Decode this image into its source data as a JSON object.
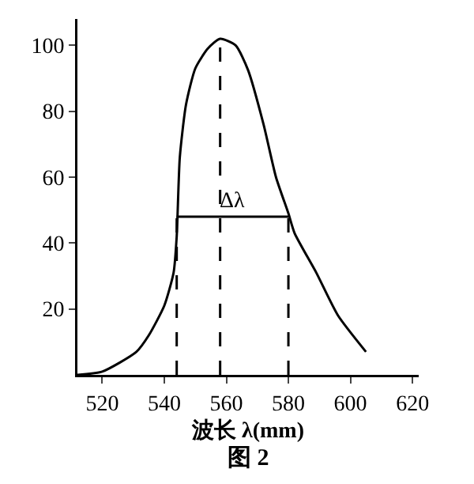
{
  "chart_data": {
    "type": "line",
    "title": "图 2",
    "xlabel": "波长 λ(mm)",
    "xlim": [
      512,
      622
    ],
    "xticks": [
      520,
      540,
      560,
      580,
      600,
      620
    ],
    "ylim": [
      0,
      108
    ],
    "yticks": [
      20,
      40,
      60,
      80,
      100
    ],
    "marker": "none",
    "annotations": [
      {
        "text": "Δλ",
        "x": 562,
        "y": 48
      }
    ],
    "series": [
      {
        "color": "#000000",
        "line_style": "solid",
        "x": [
          512,
          520,
          531,
          535,
          540,
          543,
          544,
          545,
          547,
          550,
          554,
          558,
          563,
          567,
          572,
          576,
          580,
          582,
          589,
          596,
          605
        ],
        "values": [
          0,
          1,
          7,
          12,
          21,
          31,
          42,
          66,
          82,
          93,
          99,
          102,
          100,
          92.5,
          76,
          60,
          49,
          43,
          31,
          18,
          7
        ]
      },
      {
        "color": "#000000",
        "line_style": "solid",
        "x": [
          544,
          580
        ],
        "values": [
          48,
          48
        ]
      },
      {
        "color": "#000000",
        "line_style": "dashed",
        "x": [
          544,
          544
        ],
        "values": [
          0,
          48
        ]
      },
      {
        "color": "#000000",
        "line_style": "dashed",
        "x": [
          558,
          558
        ],
        "values": [
          0,
          102
        ]
      },
      {
        "color": "#000000",
        "line_style": "dashed",
        "x": [
          580,
          580
        ],
        "values": [
          0,
          48
        ]
      }
    ]
  }
}
